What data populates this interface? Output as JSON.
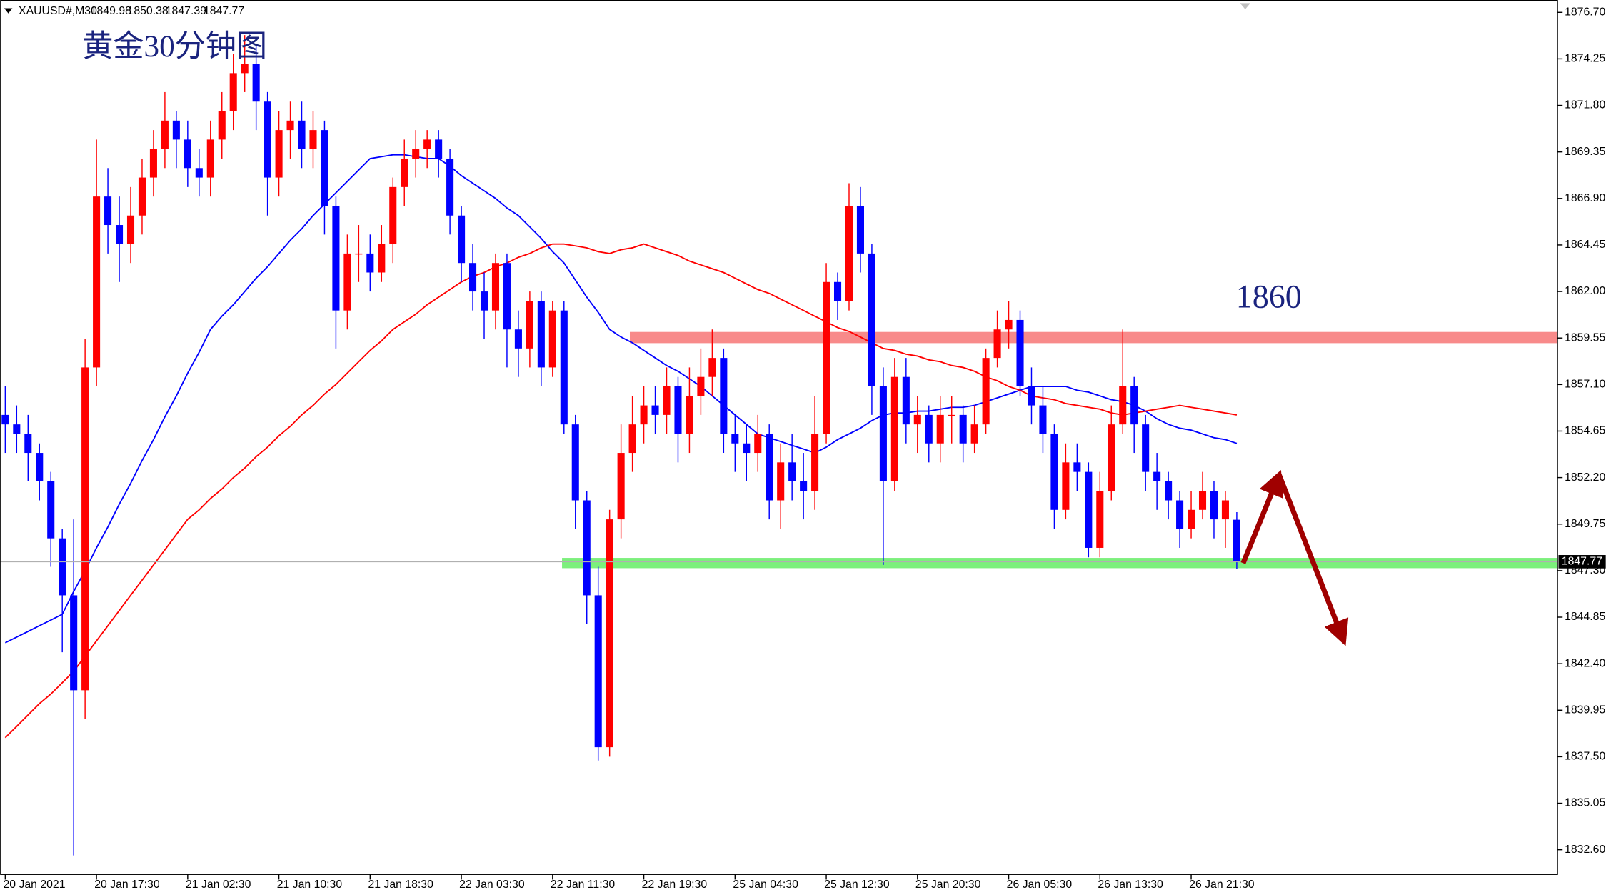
{
  "chart_data": {
    "type": "candlestick",
    "symbol": "XAUUSD#,M30",
    "title": "黄金30分钟图",
    "annotation": "1860",
    "up_color": "#ff0000",
    "down_color": "#0000ff",
    "categories": [
      "20 Jan 2021",
      null,
      null,
      null,
      null,
      null,
      null,
      null,
      "20 Jan 17:30",
      null,
      null,
      null,
      null,
      null,
      null,
      null,
      "21 Jan 02:30",
      null,
      null,
      null,
      null,
      null,
      null,
      null,
      "21 Jan 10:30",
      null,
      null,
      null,
      null,
      null,
      null,
      null,
      "21 Jan 18:30",
      null,
      null,
      null,
      null,
      null,
      null,
      null,
      "22 Jan 03:30",
      null,
      null,
      null,
      null,
      null,
      null,
      null,
      "22 Jan 11:30",
      null,
      null,
      null,
      null,
      null,
      null,
      null,
      "22 Jan 19:30",
      null,
      null,
      null,
      null,
      null,
      null,
      null,
      "25 Jan 04:30",
      null,
      null,
      null,
      null,
      null,
      null,
      null,
      "25 Jan 12:30",
      null,
      null,
      null,
      null,
      null,
      null,
      null,
      "25 Jan 20:30",
      null,
      null,
      null,
      null,
      null,
      null,
      null,
      "26 Jan 05:30",
      null,
      null,
      null,
      null,
      null,
      null,
      null,
      "26 Jan 13:30",
      null,
      null,
      null,
      null,
      null,
      null,
      null,
      "26 Jan 21:30",
      null,
      null,
      null,
      null
    ],
    "open": [
      1855.5,
      1855.0,
      1854.5,
      1853.5,
      1852.0,
      1849.0,
      1846.0,
      1841.0,
      1858.0,
      1867.0,
      1865.5,
      1864.5,
      1866.0,
      1868.0,
      1869.5,
      1871.0,
      1870.0,
      1868.5,
      1868.0,
      1870.0,
      1871.5,
      1873.5,
      1874.0,
      1872.0,
      1868.0,
      1870.5,
      1871.0,
      1869.5,
      1870.5,
      1866.5,
      1861.0,
      1864.0,
      1864.0,
      1863.0,
      1864.5,
      1867.5,
      1869.0,
      1869.5,
      1870.0,
      1869.0,
      1866.0,
      1863.5,
      1862.0,
      1861.0,
      1863.5,
      1860.0,
      1859.0,
      1861.5,
      1858.0,
      1861.0,
      1855.0,
      1851.0,
      1846.0,
      1838.0,
      1850.0,
      1853.5,
      1855.0,
      1856.0,
      1855.5,
      1857.0,
      1854.5,
      1856.5,
      1857.5,
      1858.5,
      1854.5,
      1854.0,
      1853.5,
      1854.5,
      1851.0,
      1853.0,
      1852.0,
      1851.5,
      1854.5,
      1862.5,
      1861.5,
      1866.5,
      1864.0,
      1857.0,
      1852.0,
      1857.5,
      1855.0,
      1855.5,
      1854.0,
      1855.5,
      1855.5,
      1854.0,
      1855.0,
      1858.5,
      1860.0,
      1860.5,
      1857.0,
      1856.0,
      1854.5,
      1850.5,
      1853.0,
      1852.5,
      1848.5,
      1851.5,
      1855.0,
      1857.0,
      1855.0,
      1852.5,
      1852.0,
      1851.0,
      1849.5,
      1850.5,
      1851.5,
      1850.0,
      1849.98
    ],
    "high": [
      1857.0,
      1856.0,
      1855.5,
      1854.0,
      1852.5,
      1849.5,
      1850.0,
      1859.5,
      1870.0,
      1868.5,
      1867.0,
      1867.5,
      1869.0,
      1870.5,
      1872.5,
      1871.5,
      1871.0,
      1869.5,
      1871.0,
      1872.5,
      1874.5,
      1875.5,
      1875.0,
      1872.5,
      1871.5,
      1872.0,
      1872.0,
      1871.5,
      1871.0,
      1867.0,
      1865.0,
      1865.5,
      1865.0,
      1865.5,
      1868.0,
      1870.0,
      1870.5,
      1870.5,
      1870.5,
      1869.5,
      1866.5,
      1864.5,
      1863.0,
      1864.0,
      1864.0,
      1861.0,
      1862.0,
      1862.0,
      1861.5,
      1861.5,
      1855.5,
      1851.5,
      1847.5,
      1850.5,
      1855.0,
      1856.5,
      1857.0,
      1857.0,
      1858.0,
      1857.5,
      1858.0,
      1859.0,
      1860.0,
      1859.0,
      1855.5,
      1855.0,
      1855.5,
      1855.0,
      1854.0,
      1854.5,
      1853.5,
      1856.5,
      1863.5,
      1863.0,
      1867.7,
      1867.5,
      1864.5,
      1858.0,
      1858.5,
      1858.5,
      1856.5,
      1856.0,
      1856.5,
      1856.5,
      1856.0,
      1856.0,
      1859.0,
      1861.0,
      1861.5,
      1861.0,
      1858.0,
      1857.0,
      1855.0,
      1854.0,
      1854.0,
      1853.0,
      1852.5,
      1856.0,
      1860.0,
      1857.5,
      1855.5,
      1853.5,
      1852.5,
      1851.5,
      1851.5,
      1852.5,
      1852.0,
      1851.5,
      1850.38
    ],
    "low": [
      1853.5,
      1853.5,
      1852.0,
      1851.0,
      1847.5,
      1843.0,
      1832.3,
      1839.5,
      1857.0,
      1864.0,
      1862.5,
      1863.5,
      1865.0,
      1867.0,
      1868.5,
      1868.5,
      1867.5,
      1867.0,
      1867.0,
      1869.0,
      1870.5,
      1872.5,
      1870.5,
      1866.0,
      1867.0,
      1869.0,
      1868.5,
      1868.5,
      1865.0,
      1859.0,
      1860.0,
      1862.5,
      1862.0,
      1862.5,
      1863.5,
      1866.5,
      1868.0,
      1868.5,
      1868.0,
      1865.0,
      1862.5,
      1861.0,
      1859.5,
      1860.0,
      1858.0,
      1857.5,
      1858.0,
      1857.0,
      1857.5,
      1854.5,
      1849.5,
      1844.5,
      1837.3,
      1837.5,
      1849.0,
      1852.5,
      1854.0,
      1854.5,
      1854.5,
      1853.0,
      1853.5,
      1855.5,
      1856.5,
      1853.5,
      1852.5,
      1852.0,
      1852.5,
      1850.0,
      1849.5,
      1851.0,
      1850.0,
      1850.5,
      1854.0,
      1860.5,
      1861.0,
      1863.0,
      1855.5,
      1847.6,
      1851.5,
      1854.0,
      1853.5,
      1853.0,
      1853.0,
      1854.0,
      1853.0,
      1853.5,
      1854.5,
      1858.0,
      1859.0,
      1856.5,
      1855.0,
      1853.5,
      1849.5,
      1850.0,
      1851.5,
      1848.0,
      1848.0,
      1851.0,
      1854.5,
      1853.5,
      1851.5,
      1850.5,
      1850.0,
      1848.5,
      1849.0,
      1850.0,
      1849.0,
      1848.5,
      1847.39
    ],
    "close": [
      1855.0,
      1854.5,
      1853.5,
      1852.0,
      1849.0,
      1846.0,
      1841.0,
      1858.0,
      1867.0,
      1865.5,
      1864.5,
      1866.0,
      1868.0,
      1869.5,
      1871.0,
      1870.0,
      1868.5,
      1868.0,
      1870.0,
      1871.5,
      1873.5,
      1874.0,
      1872.0,
      1868.0,
      1870.5,
      1871.0,
      1869.5,
      1870.5,
      1866.5,
      1861.0,
      1864.0,
      1864.0,
      1863.0,
      1864.5,
      1867.5,
      1869.0,
      1869.5,
      1870.0,
      1869.0,
      1866.0,
      1863.5,
      1862.0,
      1861.0,
      1863.5,
      1860.0,
      1859.0,
      1861.5,
      1858.0,
      1861.0,
      1855.0,
      1851.0,
      1846.0,
      1838.0,
      1850.0,
      1853.5,
      1855.0,
      1856.0,
      1855.5,
      1857.0,
      1854.5,
      1856.5,
      1857.5,
      1858.5,
      1854.5,
      1854.0,
      1853.5,
      1854.5,
      1851.0,
      1853.0,
      1852.0,
      1851.5,
      1854.5,
      1862.5,
      1861.5,
      1866.5,
      1864.0,
      1857.0,
      1852.0,
      1857.5,
      1855.0,
      1855.5,
      1854.0,
      1855.5,
      1855.5,
      1854.0,
      1855.0,
      1858.5,
      1860.0,
      1860.5,
      1857.0,
      1856.0,
      1854.5,
      1850.5,
      1853.0,
      1852.5,
      1848.5,
      1851.5,
      1855.0,
      1857.0,
      1855.0,
      1852.5,
      1852.0,
      1851.0,
      1849.5,
      1850.5,
      1851.5,
      1850.0,
      1851.0,
      1847.77
    ],
    "lines": [
      {
        "color": "#0000ff",
        "values": [
          1843.5,
          1843.8,
          1844.1,
          1844.4,
          1844.7,
          1845.0,
          1846.2,
          1847.3,
          1848.5,
          1849.6,
          1850.8,
          1851.9,
          1853.1,
          1854.2,
          1855.4,
          1856.5,
          1857.7,
          1858.8,
          1860.0,
          1860.7,
          1861.3,
          1862.0,
          1862.7,
          1863.3,
          1864.0,
          1864.7,
          1865.3,
          1866.0,
          1866.6,
          1867.2,
          1867.8,
          1868.4,
          1869.0,
          1869.1,
          1869.2,
          1869.2,
          1869.1,
          1869.0,
          1869.0,
          1868.6,
          1868.1,
          1867.7,
          1867.3,
          1866.9,
          1866.4,
          1866.0,
          1865.4,
          1864.8,
          1864.1,
          1863.5,
          1862.6,
          1861.7,
          1860.9,
          1860.0,
          1859.6,
          1859.3,
          1858.9,
          1858.5,
          1858.1,
          1857.8,
          1857.4,
          1857.0,
          1856.5,
          1856.0,
          1855.5,
          1855.0,
          1854.5,
          1854.3,
          1854.1,
          1853.9,
          1853.7,
          1853.5,
          1853.8,
          1854.2,
          1854.5,
          1854.8,
          1855.2,
          1855.5,
          1855.6,
          1855.6,
          1855.7,
          1855.7,
          1855.8,
          1855.9,
          1855.9,
          1856.0,
          1856.2,
          1856.4,
          1856.6,
          1856.8,
          1857.0,
          1857.0,
          1857.0,
          1857.0,
          1856.8,
          1856.7,
          1856.5,
          1856.3,
          1856.2,
          1856.0,
          1855.7,
          1855.3,
          1855.0,
          1854.8,
          1854.7,
          1854.5,
          1854.3,
          1854.2,
          1854.0
        ]
      },
      {
        "color": "#ff0000",
        "values": [
          1838.5,
          1839.1,
          1839.7,
          1840.3,
          1840.8,
          1841.4,
          1842.0,
          1842.8,
          1843.6,
          1844.4,
          1845.2,
          1846.0,
          1846.8,
          1847.6,
          1848.4,
          1849.2,
          1850.0,
          1850.5,
          1851.1,
          1851.6,
          1852.2,
          1852.7,
          1853.3,
          1853.8,
          1854.4,
          1854.9,
          1855.5,
          1856.0,
          1856.6,
          1857.1,
          1857.7,
          1858.3,
          1858.9,
          1859.4,
          1860.0,
          1860.4,
          1860.8,
          1861.3,
          1861.7,
          1862.1,
          1862.5,
          1862.8,
          1863.0,
          1863.3,
          1863.5,
          1863.8,
          1864.0,
          1864.3,
          1864.5,
          1864.5,
          1864.4,
          1864.3,
          1864.1,
          1864.0,
          1864.2,
          1864.3,
          1864.5,
          1864.3,
          1864.1,
          1863.9,
          1863.6,
          1863.4,
          1863.2,
          1863.0,
          1862.7,
          1862.4,
          1862.1,
          1861.9,
          1861.6,
          1861.3,
          1861.0,
          1860.7,
          1860.4,
          1860.1,
          1859.9,
          1859.6,
          1859.3,
          1859.0,
          1858.9,
          1858.7,
          1858.6,
          1858.4,
          1858.3,
          1858.1,
          1858.0,
          1857.8,
          1857.5,
          1857.3,
          1857.0,
          1856.8,
          1856.5,
          1856.4,
          1856.3,
          1856.1,
          1856.0,
          1855.9,
          1855.8,
          1855.6,
          1855.5,
          1855.6,
          1855.7,
          1855.8,
          1855.9,
          1856.0,
          1855.9,
          1855.8,
          1855.7,
          1855.6,
          1855.5
        ]
      }
    ],
    "zones": [
      {
        "from": 1859.28,
        "to": 1859.87,
        "color": "#f88a8a"
      },
      {
        "from": 1847.43,
        "to": 1847.97,
        "color": "#7cf07c"
      }
    ],
    "ylim": [
      1831.3,
      1877.35
    ],
    "yticks": [
      {
        "value": 1876.7,
        "label": "1876.70"
      },
      1874.25,
      {
        "value": 1871.8,
        "label": "1871.80"
      },
      1869.35,
      {
        "value": 1866.9,
        "label": "1866.90"
      },
      1864.45,
      {
        "value": 1862,
        "label": "1862.00"
      },
      1859.55,
      {
        "value": 1857.1,
        "label": "1857.10"
      },
      1854.65,
      {
        "value": 1852.2,
        "label": "1852.20"
      },
      1849.75,
      {
        "value": 1847.3,
        "label": "1847.30"
      },
      1844.85,
      {
        "value": 1842.4,
        "label": "1842.40"
      },
      1839.95,
      {
        "value": 1837.5,
        "label": "1837.50"
      },
      1835.05,
      {
        "value": 1832.6,
        "label": "1832.60"
      }
    ]
  }
}
